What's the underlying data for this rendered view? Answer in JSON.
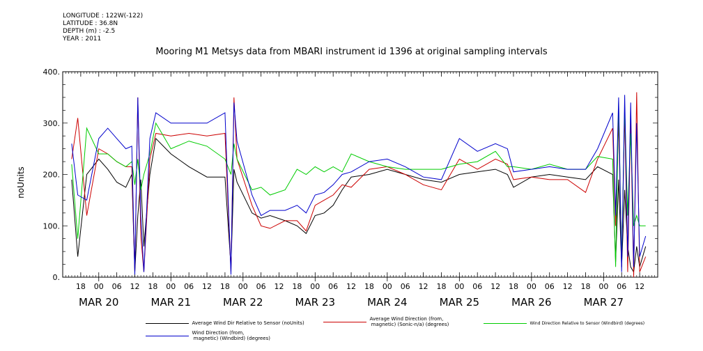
{
  "meta": {
    "longitude": "LONGITUDE : 122W(-122)",
    "latitude": "LATITUDE : 36.8N",
    "depth": "DEPTH (m) : -2.5",
    "year": "YEAR : 2011"
  },
  "chart_data": {
    "type": "line",
    "title": "Mooring M1 Metsys data from MBARI instrument id 1396 at original sampling intervals",
    "xlabel": "",
    "ylabel": "noUnits",
    "xlim": [
      "2011-03-19T12:00",
      "2011-03-27T18:00"
    ],
    "ylim": [
      0,
      400
    ],
    "yticks": [
      0,
      100,
      200,
      300,
      400
    ],
    "ytick_labels": [
      "0.",
      "100.",
      "200.",
      "300.",
      "400."
    ],
    "x_hour_ticks": [
      {
        "t": "2011-03-19T18:00",
        "label": "18"
      },
      {
        "t": "2011-03-20T00:00",
        "label": "00"
      },
      {
        "t": "2011-03-20T06:00",
        "label": "06"
      },
      {
        "t": "2011-03-20T12:00",
        "label": "12"
      },
      {
        "t": "2011-03-20T18:00",
        "label": "18"
      },
      {
        "t": "2011-03-21T00:00",
        "label": "00"
      },
      {
        "t": "2011-03-21T06:00",
        "label": "06"
      },
      {
        "t": "2011-03-21T12:00",
        "label": "12"
      },
      {
        "t": "2011-03-21T18:00",
        "label": "18"
      },
      {
        "t": "2011-03-22T00:00",
        "label": "00"
      },
      {
        "t": "2011-03-22T06:00",
        "label": "06"
      },
      {
        "t": "2011-03-22T12:00",
        "label": "12"
      },
      {
        "t": "2011-03-22T18:00",
        "label": "18"
      },
      {
        "t": "2011-03-23T00:00",
        "label": "00"
      },
      {
        "t": "2011-03-23T06:00",
        "label": "06"
      },
      {
        "t": "2011-03-23T12:00",
        "label": "12"
      },
      {
        "t": "2011-03-23T18:00",
        "label": "18"
      },
      {
        "t": "2011-03-24T00:00",
        "label": "00"
      },
      {
        "t": "2011-03-24T06:00",
        "label": "06"
      },
      {
        "t": "2011-03-24T12:00",
        "label": "12"
      },
      {
        "t": "2011-03-24T18:00",
        "label": "18"
      },
      {
        "t": "2011-03-25T00:00",
        "label": "00"
      },
      {
        "t": "2011-03-25T06:00",
        "label": "06"
      },
      {
        "t": "2011-03-25T12:00",
        "label": "12"
      },
      {
        "t": "2011-03-25T18:00",
        "label": "18"
      },
      {
        "t": "2011-03-26T00:00",
        "label": "00"
      },
      {
        "t": "2011-03-26T06:00",
        "label": "06"
      },
      {
        "t": "2011-03-26T12:00",
        "label": "12"
      },
      {
        "t": "2011-03-26T18:00",
        "label": "18"
      },
      {
        "t": "2011-03-27T00:00",
        "label": "00"
      },
      {
        "t": "2011-03-27T06:00",
        "label": "06"
      },
      {
        "t": "2011-03-27T12:00",
        "label": "12"
      }
    ],
    "x_day_labels": [
      {
        "t": "2011-03-20T00:00",
        "label": "MAR 20"
      },
      {
        "t": "2011-03-21T00:00",
        "label": "MAR 21"
      },
      {
        "t": "2011-03-22T00:00",
        "label": "MAR 22"
      },
      {
        "t": "2011-03-23T00:00",
        "label": "MAR 23"
      },
      {
        "t": "2011-03-24T00:00",
        "label": "MAR 24"
      },
      {
        "t": "2011-03-25T00:00",
        "label": "MAR 25"
      },
      {
        "t": "2011-03-26T00:00",
        "label": "MAR 26"
      },
      {
        "t": "2011-03-27T00:00",
        "label": "MAR 27"
      }
    ],
    "series": [
      {
        "name": "Average Wind Dir Relative to Sensor (noUnits)",
        "color": "#000000",
        "x": [
          "2011-03-19T15:00",
          "2011-03-19T17:00",
          "2011-03-19T20:00",
          "2011-03-20T00:00",
          "2011-03-20T03:00",
          "2011-03-20T06:00",
          "2011-03-20T09:00",
          "2011-03-20T11:00",
          "2011-03-20T12:00",
          "2011-03-20T13:00",
          "2011-03-20T14:00",
          "2011-03-20T15:00",
          "2011-03-20T17:00",
          "2011-03-20T19:00",
          "2011-03-21T00:00",
          "2011-03-21T06:00",
          "2011-03-21T12:00",
          "2011-03-21T18:00",
          "2011-03-21T20:00",
          "2011-03-21T21:00",
          "2011-03-21T22:00",
          "2011-03-22T03:00",
          "2011-03-22T06:00",
          "2011-03-22T09:00",
          "2011-03-22T14:00",
          "2011-03-22T18:00",
          "2011-03-22T21:00",
          "2011-03-23T00:00",
          "2011-03-23T03:00",
          "2011-03-23T06:00",
          "2011-03-23T09:00",
          "2011-03-23T12:00",
          "2011-03-23T18:00",
          "2011-03-24T00:00",
          "2011-03-24T06:00",
          "2011-03-24T12:00",
          "2011-03-24T18:00",
          "2011-03-25T00:00",
          "2011-03-25T06:00",
          "2011-03-25T12:00",
          "2011-03-25T16:00",
          "2011-03-25T18:00",
          "2011-03-26T00:00",
          "2011-03-26T06:00",
          "2011-03-26T12:00",
          "2011-03-26T18:00",
          "2011-03-26T22:00",
          "2011-03-27T03:00",
          "2011-03-27T04:00",
          "2011-03-27T05:00",
          "2011-03-27T06:00",
          "2011-03-27T07:00",
          "2011-03-27T08:00",
          "2011-03-27T09:00",
          "2011-03-27T10:00",
          "2011-03-27T11:00",
          "2011-03-27T12:00",
          "2011-03-27T14:00"
        ],
        "y": [
          190,
          40,
          200,
          230,
          210,
          185,
          175,
          200,
          10,
          120,
          190,
          60,
          200,
          270,
          240,
          215,
          195,
          195,
          20,
          210,
          185,
          125,
          115,
          120,
          110,
          100,
          85,
          120,
          125,
          140,
          170,
          195,
          200,
          210,
          200,
          190,
          185,
          200,
          205,
          210,
          200,
          175,
          195,
          200,
          195,
          190,
          215,
          200,
          30,
          190,
          20,
          170,
          60,
          20,
          10,
          60,
          20,
          60
        ]
      },
      {
        "name": "Average Wind Direction (from,\n magnetic) (Sonic-n/a) (degrees)",
        "color": "#cc0000",
        "x": [
          "2011-03-19T15:00",
          "2011-03-19T17:00",
          "2011-03-19T20:00",
          "2011-03-20T00:00",
          "2011-03-20T03:00",
          "2011-03-20T06:00",
          "2011-03-20T09:00",
          "2011-03-20T11:00",
          "2011-03-20T12:00",
          "2011-03-20T13:00",
          "2011-03-20T14:00",
          "2011-03-20T15:00",
          "2011-03-20T17:00",
          "2011-03-20T19:00",
          "2011-03-21T00:00",
          "2011-03-21T06:00",
          "2011-03-21T12:00",
          "2011-03-21T18:00",
          "2011-03-21T20:00",
          "2011-03-21T21:00",
          "2011-03-21T22:00",
          "2011-03-22T03:00",
          "2011-03-22T06:00",
          "2011-03-22T09:00",
          "2011-03-22T14:00",
          "2011-03-22T18:00",
          "2011-03-22T21:00",
          "2011-03-23T00:00",
          "2011-03-23T03:00",
          "2011-03-23T06:00",
          "2011-03-23T09:00",
          "2011-03-23T12:00",
          "2011-03-23T18:00",
          "2011-03-24T00:00",
          "2011-03-24T06:00",
          "2011-03-24T12:00",
          "2011-03-24T18:00",
          "2011-03-25T00:00",
          "2011-03-25T06:00",
          "2011-03-25T12:00",
          "2011-03-25T16:00",
          "2011-03-25T18:00",
          "2011-03-26T00:00",
          "2011-03-26T06:00",
          "2011-03-26T12:00",
          "2011-03-26T18:00",
          "2011-03-26T22:00",
          "2011-03-27T03:00",
          "2011-03-27T04:00",
          "2011-03-27T05:00",
          "2011-03-27T06:00",
          "2011-03-27T07:00",
          "2011-03-27T08:00",
          "2011-03-27T09:00",
          "2011-03-27T10:00",
          "2011-03-27T11:00",
          "2011-03-27T12:00",
          "2011-03-27T14:00"
        ],
        "y": [
          230,
          310,
          120,
          250,
          240,
          225,
          215,
          215,
          10,
          350,
          80,
          10,
          230,
          280,
          275,
          280,
          275,
          280,
          10,
          350,
          230,
          140,
          100,
          95,
          110,
          110,
          90,
          140,
          150,
          160,
          180,
          175,
          210,
          215,
          200,
          180,
          170,
          230,
          210,
          230,
          220,
          190,
          195,
          190,
          190,
          165,
          230,
          290,
          100,
          305,
          20,
          320,
          10,
          310,
          0,
          360,
          10,
          40
        ]
      },
      {
        "name": "Wind Direction Relative to Sensor (Windbird) (degrees)",
        "color": "#00cc00",
        "x": [
          "2011-03-19T15:00",
          "2011-03-19T17:00",
          "2011-03-19T20:00",
          "2011-03-20T00:00",
          "2011-03-20T03:00",
          "2011-03-20T06:00",
          "2011-03-20T09:00",
          "2011-03-20T11:00",
          "2011-03-20T12:00",
          "2011-03-20T13:00",
          "2011-03-20T14:00",
          "2011-03-20T15:00",
          "2011-03-20T17:00",
          "2011-03-20T19:00",
          "2011-03-21T00:00",
          "2011-03-21T06:00",
          "2011-03-21T12:00",
          "2011-03-21T18:00",
          "2011-03-21T20:00",
          "2011-03-21T21:00",
          "2011-03-21T22:00",
          "2011-03-22T03:00",
          "2011-03-22T06:00",
          "2011-03-22T09:00",
          "2011-03-22T14:00",
          "2011-03-22T18:00",
          "2011-03-22T21:00",
          "2011-03-23T00:00",
          "2011-03-23T03:00",
          "2011-03-23T06:00",
          "2011-03-23T09:00",
          "2011-03-23T12:00",
          "2011-03-23T18:00",
          "2011-03-24T00:00",
          "2011-03-24T06:00",
          "2011-03-24T12:00",
          "2011-03-24T18:00",
          "2011-03-25T00:00",
          "2011-03-25T06:00",
          "2011-03-25T12:00",
          "2011-03-25T16:00",
          "2011-03-25T18:00",
          "2011-03-26T00:00",
          "2011-03-26T06:00",
          "2011-03-26T12:00",
          "2011-03-26T18:00",
          "2011-03-26T22:00",
          "2011-03-27T03:00",
          "2011-03-27T04:00",
          "2011-03-27T05:00",
          "2011-03-27T06:00",
          "2011-03-27T07:00",
          "2011-03-27T08:00",
          "2011-03-27T09:00",
          "2011-03-27T10:00",
          "2011-03-27T11:00",
          "2011-03-27T12:00",
          "2011-03-27T14:00"
        ],
        "y": [
          220,
          75,
          290,
          240,
          240,
          225,
          215,
          225,
          180,
          230,
          170,
          200,
          240,
          300,
          250,
          265,
          255,
          230,
          200,
          260,
          230,
          170,
          175,
          160,
          170,
          210,
          200,
          215,
          205,
          215,
          205,
          240,
          225,
          215,
          210,
          210,
          210,
          220,
          225,
          245,
          215,
          215,
          210,
          220,
          210,
          210,
          235,
          230,
          20,
          340,
          30,
          330,
          120,
          280,
          100,
          120,
          100,
          100
        ]
      },
      {
        "name": "Wind Direction (from,\n magnetic) (Windbird) (degrees)",
        "color": "#0000cc",
        "x": [
          "2011-03-19T15:00",
          "2011-03-19T17:00",
          "2011-03-19T20:00",
          "2011-03-20T00:00",
          "2011-03-20T03:00",
          "2011-03-20T06:00",
          "2011-03-20T09:00",
          "2011-03-20T11:00",
          "2011-03-20T12:00",
          "2011-03-20T13:00",
          "2011-03-20T14:00",
          "2011-03-20T15:00",
          "2011-03-20T17:00",
          "2011-03-20T19:00",
          "2011-03-21T00:00",
          "2011-03-21T06:00",
          "2011-03-21T12:00",
          "2011-03-21T18:00",
          "2011-03-21T20:00",
          "2011-03-21T21:00",
          "2011-03-21T22:00",
          "2011-03-22T03:00",
          "2011-03-22T06:00",
          "2011-03-22T09:00",
          "2011-03-22T14:00",
          "2011-03-22T18:00",
          "2011-03-22T21:00",
          "2011-03-23T00:00",
          "2011-03-23T03:00",
          "2011-03-23T06:00",
          "2011-03-23T09:00",
          "2011-03-23T12:00",
          "2011-03-23T18:00",
          "2011-03-24T00:00",
          "2011-03-24T06:00",
          "2011-03-24T12:00",
          "2011-03-24T18:00",
          "2011-03-25T00:00",
          "2011-03-25T06:00",
          "2011-03-25T12:00",
          "2011-03-25T16:00",
          "2011-03-25T18:00",
          "2011-03-26T00:00",
          "2011-03-26T06:00",
          "2011-03-26T12:00",
          "2011-03-26T18:00",
          "2011-03-26T22:00",
          "2011-03-27T03:00",
          "2011-03-27T04:00",
          "2011-03-27T05:00",
          "2011-03-27T06:00",
          "2011-03-27T07:00",
          "2011-03-27T08:00",
          "2011-03-27T09:00",
          "2011-03-27T10:00",
          "2011-03-27T11:00",
          "2011-03-27T12:00",
          "2011-03-27T14:00"
        ],
        "y": [
          260,
          160,
          150,
          270,
          290,
          270,
          250,
          255,
          5,
          350,
          120,
          10,
          270,
          320,
          300,
          300,
          300,
          320,
          5,
          340,
          265,
          160,
          120,
          130,
          130,
          140,
          125,
          160,
          165,
          180,
          200,
          205,
          225,
          230,
          215,
          195,
          190,
          270,
          245,
          260,
          250,
          205,
          210,
          215,
          210,
          210,
          250,
          320,
          120,
          350,
          10,
          355,
          40,
          340,
          20,
          300,
          40,
          80
        ]
      }
    ]
  },
  "legend": [
    {
      "label": "Average Wind Dir Relative to Sensor (noUnits)",
      "color": "#000000"
    },
    {
      "label": "Average Wind Direction (from,\n magnetic) (Sonic-n/a) (degrees)",
      "color": "#cc0000"
    },
    {
      "label": "Wind Direction Relative to Sensor (Windbird) (degrees)",
      "color": "#00cc00"
    },
    {
      "label": "Wind Direction (from,\n magnetic) (Windbird) (degrees)",
      "color": "#0000cc"
    }
  ]
}
